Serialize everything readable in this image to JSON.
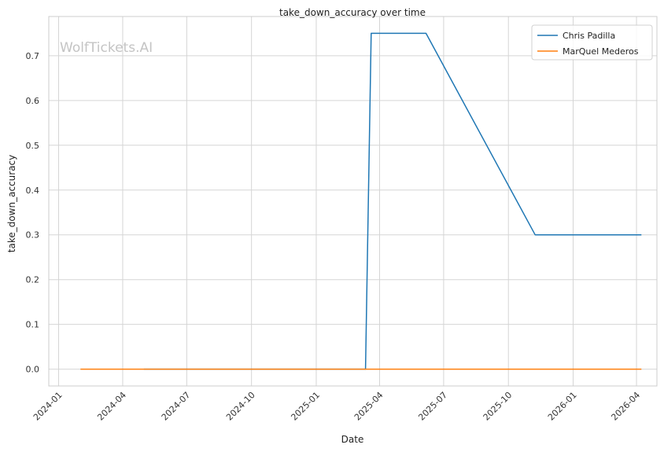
{
  "chart_data": {
    "type": "line",
    "title": "take_down_accuracy over time",
    "xlabel": "Date",
    "ylabel": "take_down_accuracy",
    "x_ticks": [
      "2024-01",
      "2024-04",
      "2024-07",
      "2024-10",
      "2025-01",
      "2025-04",
      "2025-07",
      "2025-10",
      "2026-01",
      "2026-04"
    ],
    "y_ticks": [
      "0.0",
      "0.1",
      "0.2",
      "0.3",
      "0.4",
      "0.5",
      "0.6",
      "0.7"
    ],
    "xlim": [
      "2023-12-18",
      "2026-04-30"
    ],
    "ylim": [
      -0.0375,
      0.7875
    ],
    "grid": true,
    "legend_position": "top-right",
    "watermark": "WolfTickets.AI",
    "series": [
      {
        "name": "Chris Padilla",
        "color": "#1f77b4",
        "points": [
          {
            "x": "2024-05-01",
            "y": 0.0
          },
          {
            "x": "2025-03-12",
            "y": 0.0
          },
          {
            "x": "2025-03-20",
            "y": 0.75
          },
          {
            "x": "2025-06-06",
            "y": 0.75
          },
          {
            "x": "2025-11-08",
            "y": 0.3
          },
          {
            "x": "2026-04-08",
            "y": 0.3
          }
        ]
      },
      {
        "name": "MarQuel Mederos",
        "color": "#ff7f0e",
        "points": [
          {
            "x": "2024-02-01",
            "y": 0.0
          },
          {
            "x": "2026-04-08",
            "y": 0.0
          }
        ]
      }
    ]
  }
}
